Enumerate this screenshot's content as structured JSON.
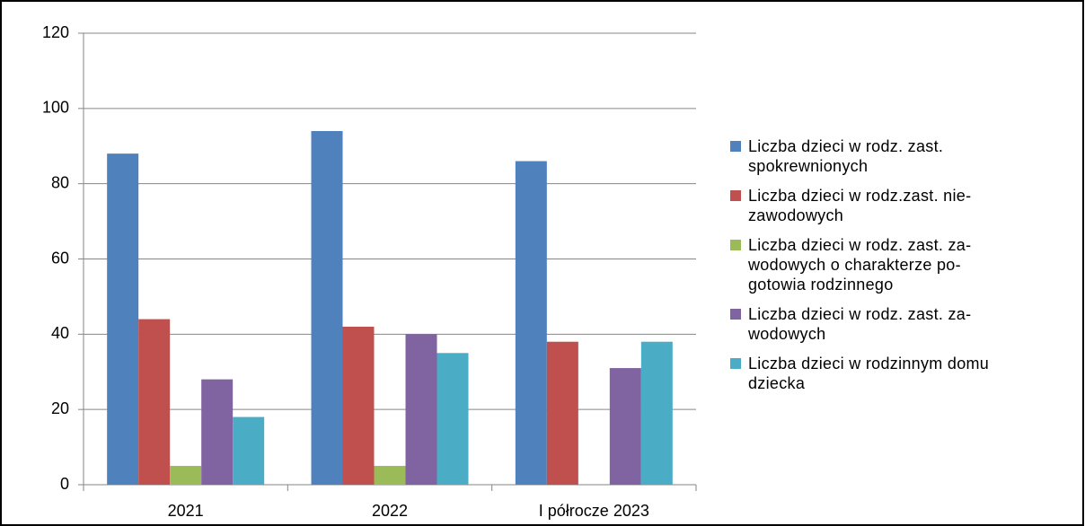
{
  "chart_data": {
    "type": "bar",
    "categories": [
      "2021",
      "2022",
      "I półrocze 2023"
    ],
    "series": [
      {
        "name": "Liczba dzieci w rodz. zast.\nspokrewnionych",
        "color": "#4f81bd",
        "values": [
          88,
          94,
          86
        ]
      },
      {
        "name": "Liczba dzieci w rodz.zast. nie-\nzawodowych",
        "color": "#c0504d",
        "values": [
          44,
          42,
          38
        ]
      },
      {
        "name": "Liczba dzieci w rodz. zast.  za-\nwodowych o charakterze po-\ngotowia rodzinnego",
        "color": "#9bbb59",
        "values": [
          5,
          5,
          0
        ]
      },
      {
        "name": "Liczba dzieci w rodz. zast. za-\nwodowych",
        "color": "#8064a2",
        "values": [
          28,
          40,
          31
        ]
      },
      {
        "name": "Liczba dzieci w rodzinnym domu\ndziecka",
        "color": "#4bacc6",
        "values": [
          18,
          35,
          38
        ]
      }
    ],
    "ylim": [
      0,
      120
    ],
    "yticks": [
      0,
      20,
      40,
      60,
      80,
      100,
      120
    ],
    "grid": true,
    "legend": "right"
  }
}
